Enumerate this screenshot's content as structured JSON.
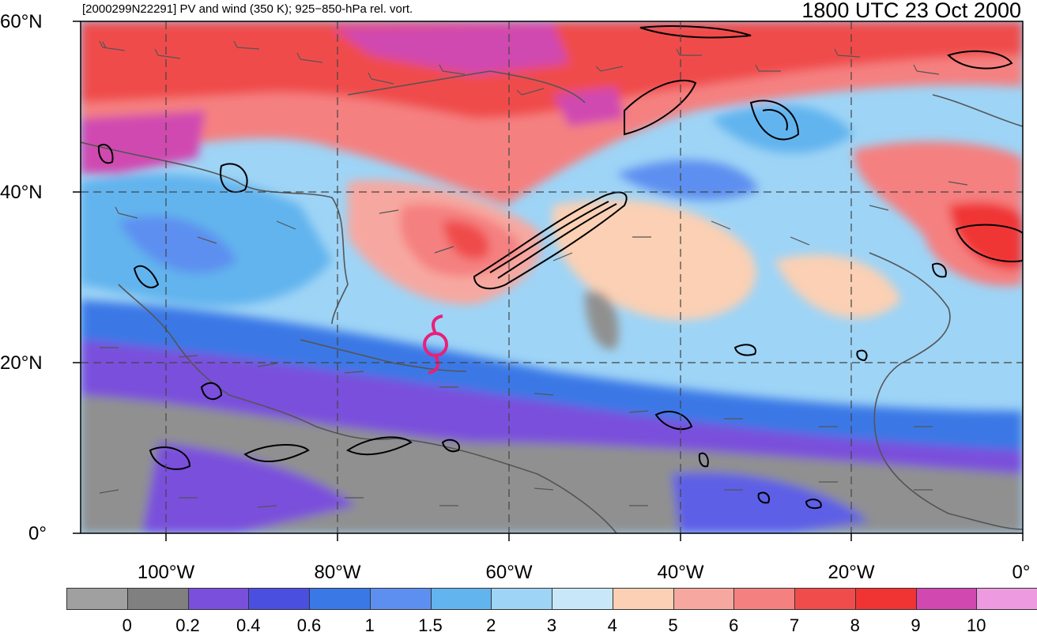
{
  "header": {
    "left_title": "[2000299N22291] PV and wind (350 K); 925−850-hPa rel. vort.",
    "right_title": "1800 UTC 23 Oct 2000"
  },
  "axes": {
    "lat_labels": [
      "60°N",
      "40°N",
      "20°N",
      "0°"
    ],
    "lon_labels": [
      "100°W",
      "80°W",
      "60°W",
      "40°W",
      "20°W",
      "0°"
    ]
  },
  "colorbar": {
    "labels": [
      "0",
      "0.2",
      "0.4",
      "0.6",
      "1",
      "1.5",
      "2",
      "3",
      "4",
      "5",
      "6",
      "7",
      "8",
      "9",
      "10"
    ],
    "colors": [
      "#a0a0a0",
      "#808080",
      "#7a4fdc",
      "#4b4fe0",
      "#3a78e6",
      "#5d8ff0",
      "#62b4ee",
      "#9ed4f6",
      "#c8e8fa",
      "#fbd0b4",
      "#f6a8a0",
      "#f58080",
      "#f04c4c",
      "#f03434",
      "#d048b0",
      "#ee9ae0"
    ]
  },
  "map_data": {
    "extent": {
      "lon_min": -110,
      "lon_max": 0,
      "lat_min": 0,
      "lat_max": 60
    },
    "gridlines": {
      "lon": [
        -100,
        -80,
        -60,
        -40,
        -20
      ],
      "lat": [
        40,
        20
      ]
    },
    "storm_symbol": {
      "lon": -69.5,
      "lat": 21.5,
      "color": "#e8207a"
    },
    "field": "PV (350 K) shaded, 925-850-hPa relative vorticity contours, wind barbs"
  }
}
